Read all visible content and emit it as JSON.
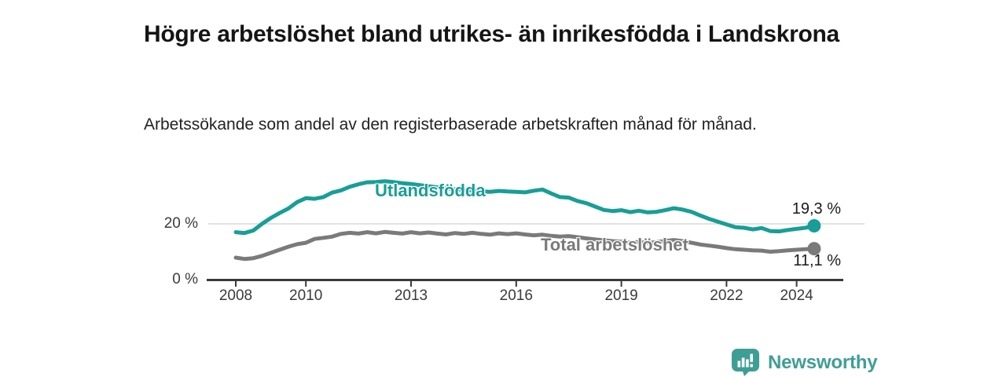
{
  "header": {
    "title": "Högre arbetslöshet bland utrikes- än inrikesfödda i Landskrona",
    "subtitle": "Arbetssökande som andel av den registerbaserade arbetskraften månad för månad."
  },
  "chart_data": {
    "type": "line",
    "unit": "%",
    "x_start": 2008,
    "x_step": 0.25,
    "xlim": [
      2008,
      2024.6
    ],
    "ylim": [
      0,
      40
    ],
    "grid": "single horizontal gridline at 20 %",
    "legend_position": "inline labels on lines",
    "x_ticks": [
      2008,
      2010,
      2013,
      2016,
      2019,
      2022,
      2024
    ],
    "y_ticks": [
      {
        "value": 0,
        "label": "0 %"
      },
      {
        "value": 20,
        "label": "20 %"
      }
    ],
    "grid_y_values": [
      20
    ],
    "axis_color": "#3a3a3a",
    "gridline_color": "#d9d9d9",
    "series": [
      {
        "name": "Utlandsfödda",
        "color": "#189E96",
        "end_label": "19,3 %",
        "end_value": 19.3,
        "values": [
          17.0,
          16.7,
          17.6,
          20.0,
          22.1,
          23.9,
          25.5,
          27.8,
          29.2,
          29.0,
          29.6,
          31.2,
          32.0,
          33.3,
          34.2,
          34.9,
          35.0,
          35.3,
          35.0,
          34.6,
          34.3,
          33.9,
          33.5,
          33.1,
          32.7,
          32.4,
          32.2,
          31.9,
          31.7,
          31.5,
          31.8,
          31.6,
          31.5,
          31.3,
          31.9,
          32.3,
          30.9,
          29.6,
          29.4,
          28.2,
          27.4,
          26.2,
          25.0,
          24.6,
          24.9,
          24.2,
          24.7,
          24.1,
          24.3,
          24.9,
          25.6,
          25.1,
          24.3,
          23.0,
          21.8,
          20.8,
          19.8,
          18.8,
          18.6,
          18.0,
          18.5,
          17.4,
          17.3,
          17.8,
          18.2,
          18.6,
          19.3
        ]
      },
      {
        "name": "Total arbetslöshet",
        "color": "#7A7A7A",
        "end_label": "11,1 %",
        "end_value": 11.1,
        "values": [
          7.9,
          7.4,
          7.7,
          8.5,
          9.6,
          10.7,
          11.8,
          12.7,
          13.2,
          14.6,
          15.0,
          15.4,
          16.4,
          16.8,
          16.5,
          17.0,
          16.6,
          17.1,
          16.8,
          16.5,
          17.0,
          16.6,
          16.9,
          16.5,
          16.2,
          16.7,
          16.4,
          16.8,
          16.4,
          16.1,
          16.6,
          16.3,
          16.6,
          16.2,
          15.9,
          16.1,
          15.7,
          15.4,
          15.6,
          15.2,
          14.8,
          14.4,
          14.1,
          13.8,
          13.6,
          13.3,
          13.5,
          13.2,
          13.4,
          13.9,
          14.2,
          13.8,
          13.2,
          12.6,
          12.2,
          11.8,
          11.3,
          10.9,
          10.7,
          10.5,
          10.4,
          10.0,
          10.2,
          10.5,
          10.7,
          10.9,
          11.1
        ]
      }
    ]
  },
  "footer": {
    "brand": "Newsworthy",
    "brand_color": "#3E9E95",
    "logo_icon": "newsworthy-bar-chart-bubble"
  }
}
